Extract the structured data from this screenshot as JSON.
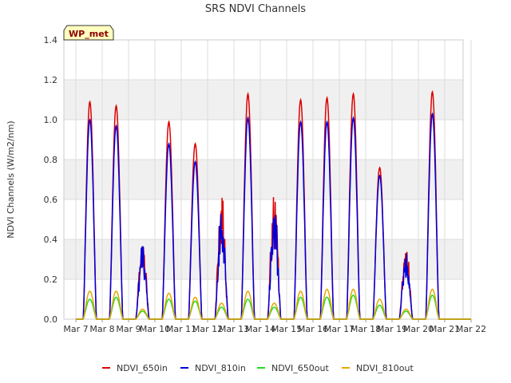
{
  "chart_data": {
    "type": "line",
    "title": "SRS NDVI Channels",
    "ylabel": "NDVI Channels (W/m2/nm)",
    "xlabel": "",
    "site_badge": "WP_met",
    "ylim": [
      0,
      1.4
    ],
    "yticks": [
      "0.0",
      "0.2",
      "0.4",
      "0.6",
      "0.8",
      "1.0",
      "1.2",
      "1.4"
    ],
    "xlim": [
      0,
      15
    ],
    "xticks": [
      "Mar 7",
      "Mar 8",
      "Mar 9",
      "Mar 10",
      "Mar 11",
      "Mar 12",
      "Mar 13",
      "Mar 14",
      "Mar 15",
      "Mar 16",
      "Mar 17",
      "Mar 18",
      "Mar 19",
      "Mar 20",
      "Mar 21",
      "Mar 22"
    ],
    "grid": true,
    "legend_position": "bottom",
    "daily_peaks": {
      "days": [
        "Mar 7",
        "Mar 8",
        "Mar 9",
        "Mar 10",
        "Mar 11",
        "Mar 12",
        "Mar 13",
        "Mar 14",
        "Mar 15",
        "Mar 16",
        "Mar 17",
        "Mar 18",
        "Mar 19",
        "Mar 20",
        "Mar 21"
      ],
      "series": [
        {
          "name": "NDVI_650in",
          "color": "#dd0000",
          "values": [
            1.09,
            1.07,
            0.41,
            0.99,
            0.88,
            0.64,
            1.13,
            0.65,
            1.1,
            1.11,
            1.13,
            0.76,
            0.4,
            1.14,
            0.0
          ]
        },
        {
          "name": "NDVI_810in",
          "color": "#0000dd",
          "values": [
            1.0,
            0.97,
            0.38,
            0.88,
            0.79,
            0.58,
            1.01,
            0.58,
            0.99,
            0.99,
            1.01,
            0.72,
            0.37,
            1.03,
            0.0
          ]
        },
        {
          "name": "NDVI_650out",
          "color": "#22dd22",
          "values": [
            0.1,
            0.11,
            0.04,
            0.1,
            0.09,
            0.06,
            0.1,
            0.06,
            0.11,
            0.11,
            0.12,
            0.07,
            0.04,
            0.12,
            0.0
          ]
        },
        {
          "name": "NDVI_810out",
          "color": "#e6a800",
          "values": [
            0.14,
            0.14,
            0.05,
            0.13,
            0.11,
            0.08,
            0.14,
            0.08,
            0.14,
            0.15,
            0.15,
            0.1,
            0.05,
            0.15,
            0.0
          ]
        }
      ]
    }
  }
}
